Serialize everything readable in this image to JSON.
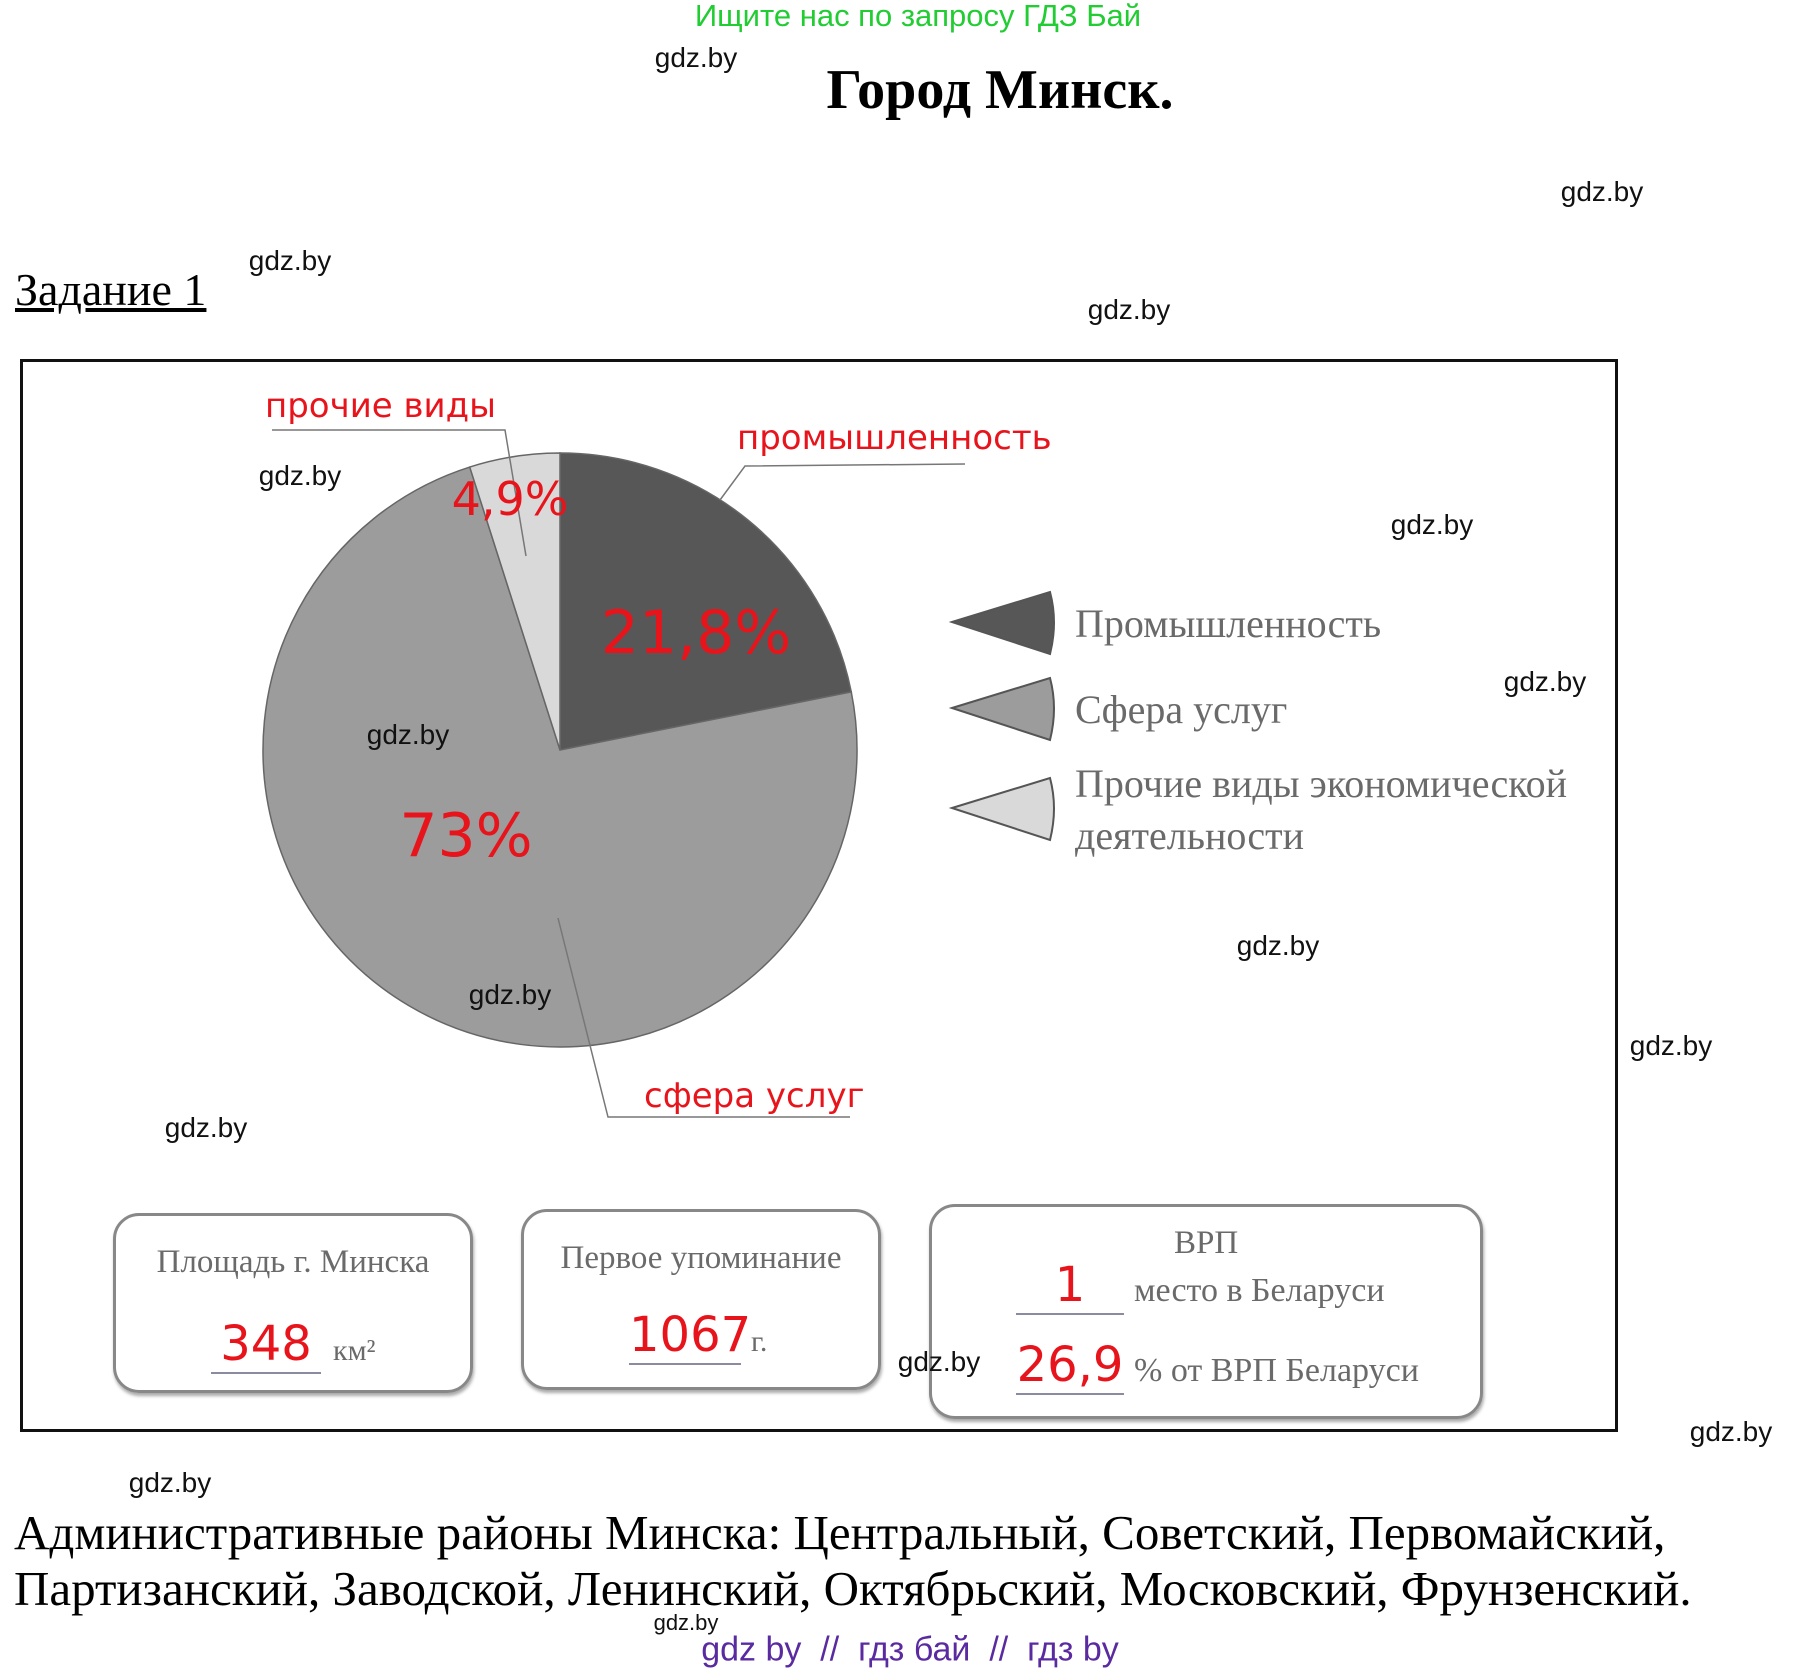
{
  "header": {
    "promo": "Ищите нас по запросу ГДЗ Бай",
    "title": "Город Минск.",
    "task": "Задание 1"
  },
  "watermark": "gdz.by",
  "chart_data": {
    "type": "pie",
    "title": "",
    "slices": [
      {
        "name": "Промышленность",
        "value": 21.8,
        "label": "21,8%",
        "callout": "промышленность",
        "color": "#575757"
      },
      {
        "name": "Сфера услуг",
        "value": 73,
        "label": "73%",
        "callout": "сфера услуг",
        "color": "#9c9c9c"
      },
      {
        "name": "Прочие виды экономической деятельности",
        "value": 4.9,
        "label": "4,9%",
        "callout": "прочие виды",
        "color": "#d9d9d9"
      }
    ],
    "legend": {
      "placement": "right",
      "items": [
        "Промышленность",
        "Сфера услуг",
        "Прочие виды экономической",
        "деятельности"
      ]
    }
  },
  "cards": {
    "area": {
      "label": "Площадь г. Минска",
      "value": "348",
      "unit": "км²"
    },
    "first_mention": {
      "label": "Первое упоминание",
      "value": "1067",
      "unit": "г."
    },
    "grp": {
      "title": "ВРП",
      "rank": "1",
      "rank_label": "место в Беларуси",
      "share": "26,9",
      "share_label": "% от ВРП Беларуси"
    }
  },
  "districts": {
    "line1": "Административные районы Минска: Центральный, Советский, Первомайский,",
    "line2": "Партизанский, Заводской, Ленинский, Октябрьский, Московский, Фрунзенский."
  },
  "footer": "gdz by  //  гдз бай  //  гдз by"
}
